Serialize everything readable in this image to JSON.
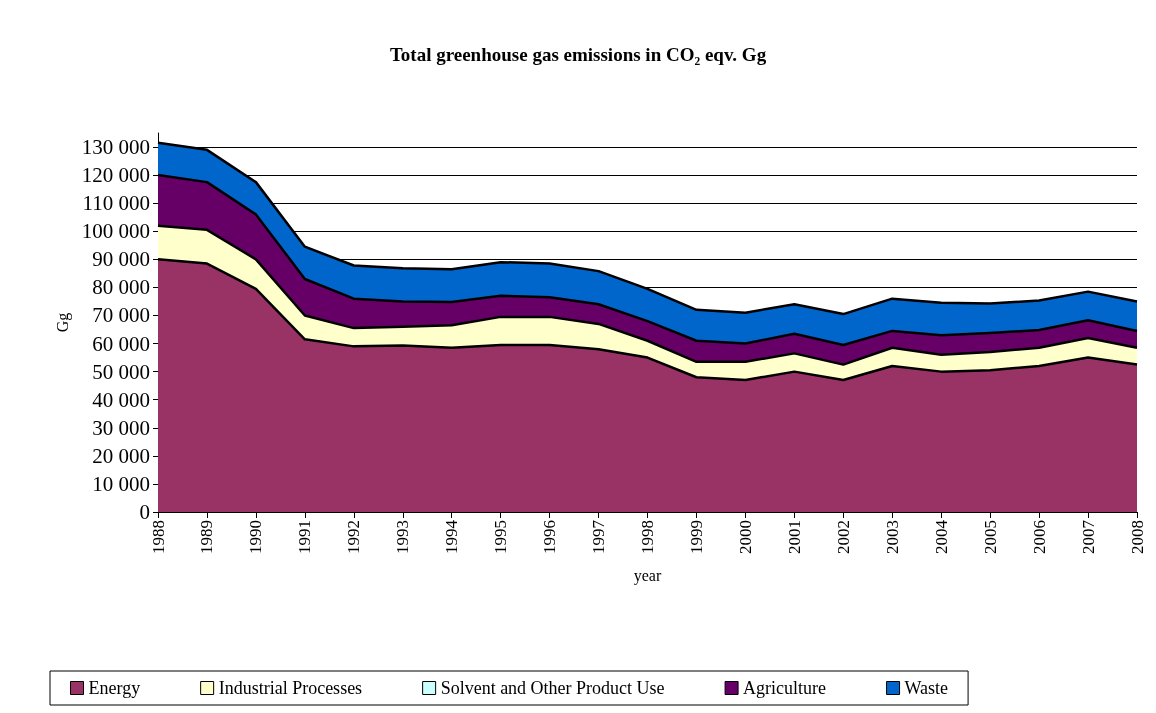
{
  "chart_data": {
    "type": "area",
    "stacked": true,
    "title": "Total greenhouse gas emissions in CO₂ eqv. Gg",
    "xlabel": "year",
    "ylabel": "Gg",
    "categories": [
      "1988",
      "1989",
      "1990",
      "1991",
      "1992",
      "1993",
      "1994",
      "1995",
      "1996",
      "1997",
      "1998",
      "1999",
      "2000",
      "2001",
      "2002",
      "2003",
      "2004",
      "2005",
      "2006",
      "2007",
      "2008"
    ],
    "series": [
      {
        "name": "Energy",
        "color": "#993366",
        "values": [
          90000,
          88500,
          79500,
          61500,
          59000,
          59300,
          58500,
          59500,
          59500,
          58000,
          55000,
          48000,
          47000,
          50000,
          47000,
          52000,
          50000,
          50500,
          52000,
          55000,
          52500
        ]
      },
      {
        "name": "Industrial Processes",
        "color": "#ffffcc",
        "values": [
          12000,
          12000,
          10500,
          8500,
          6500,
          6700,
          8000,
          10000,
          10000,
          9000,
          6000,
          5500,
          6500,
          6500,
          5500,
          6500,
          6000,
          6500,
          6500,
          7000,
          6000
        ]
      },
      {
        "name": "Solvent and Other Product Use",
        "color": "#ccffff",
        "values": [
          null,
          null,
          null,
          null,
          null,
          null,
          null,
          null,
          null,
          null,
          null,
          null,
          null,
          null,
          null,
          null,
          null,
          null,
          null,
          null,
          null
        ]
      },
      {
        "name": "Agriculture",
        "color": "#660066",
        "values": [
          18000,
          17000,
          16000,
          13000,
          10500,
          9000,
          8300,
          7500,
          7000,
          7000,
          7000,
          7500,
          6500,
          7000,
          7000,
          6000,
          7000,
          6800,
          6300,
          6300,
          6000
        ]
      },
      {
        "name": "Waste",
        "color": "#0066cc",
        "values": [
          11500,
          11500,
          11500,
          11500,
          11800,
          11800,
          11700,
          12000,
          12000,
          11800,
          11500,
          11000,
          11000,
          10500,
          11000,
          11500,
          11500,
          10500,
          10500,
          10200,
          10500
        ]
      }
    ],
    "ylim": [
      0,
      135000
    ],
    "yticks": [
      0,
      {
        "value": 10000,
        "label": "10 000"
      },
      {
        "value": 20000,
        "label": "20 000"
      },
      {
        "value": 30000,
        "label": "30 000"
      },
      {
        "value": 40000,
        "label": "40 000"
      },
      {
        "value": 50000,
        "label": "50 000"
      },
      {
        "value": 60000,
        "label": "60 000"
      },
      {
        "value": 70000,
        "label": "70 000"
      },
      {
        "value": 80000,
        "label": "80 000"
      },
      {
        "value": 90000,
        "label": "90 000"
      },
      {
        "value": 100000,
        "label": "100 000"
      },
      {
        "value": 110000,
        "label": "110 000"
      },
      {
        "value": 120000,
        "label": "120 000"
      },
      {
        "value": 130000,
        "label": "130 000"
      }
    ],
    "grid": "y",
    "legend": "bottom",
    "marker": "none",
    "line_style": "solid"
  }
}
